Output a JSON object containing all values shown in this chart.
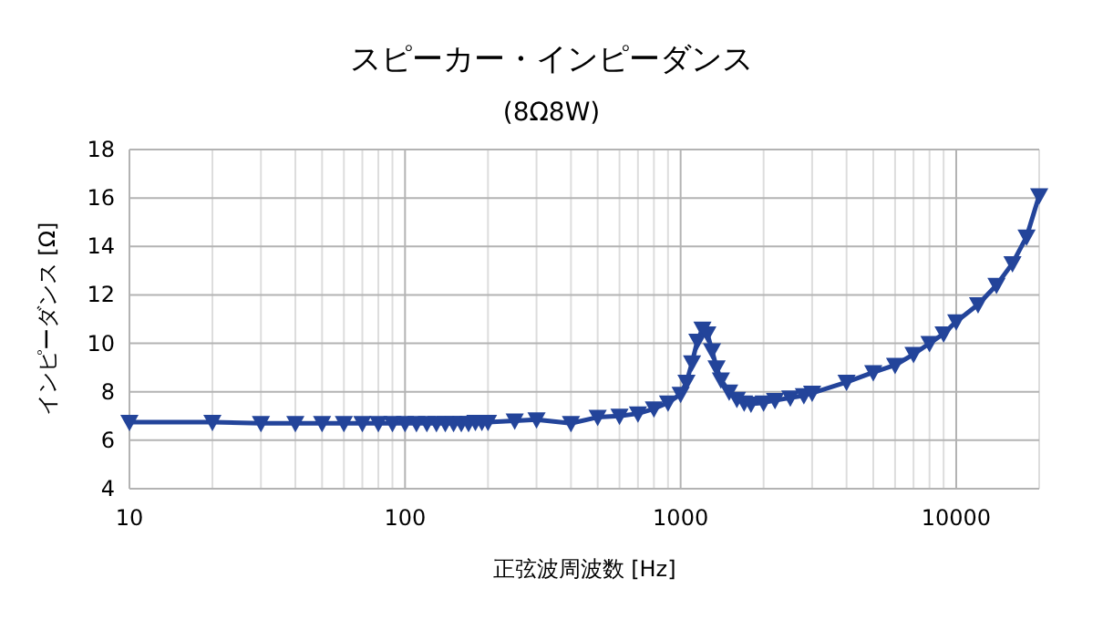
{
  "chart_data": {
    "type": "line",
    "title": "スピーカー・インピーダンス",
    "subtitle": "(8Ω8W)",
    "xlabel": "正弦波周波数 [Hz]",
    "ylabel": "インピーダンス [Ω]",
    "log": "x",
    "grid": true,
    "marker": "triangle",
    "line_style": "solid",
    "xlim": [
      10,
      20000
    ],
    "ylim": [
      4,
      18
    ],
    "xticks": [
      10,
      {
        "value": 20,
        "label": null
      },
      {
        "value": 30,
        "label": null
      },
      {
        "value": 40,
        "label": null
      },
      {
        "value": 50,
        "label": null
      },
      {
        "value": 60,
        "label": null
      },
      {
        "value": 70,
        "label": null
      },
      {
        "value": 80,
        "label": null
      },
      {
        "value": 90,
        "label": null
      },
      100,
      {
        "value": 200,
        "label": null
      },
      {
        "value": 300,
        "label": null
      },
      {
        "value": 400,
        "label": null
      },
      {
        "value": 500,
        "label": null
      },
      {
        "value": 600,
        "label": null
      },
      {
        "value": 700,
        "label": null
      },
      {
        "value": 800,
        "label": null
      },
      {
        "value": 900,
        "label": null
      },
      1000,
      {
        "value": 2000,
        "label": null
      },
      {
        "value": 3000,
        "label": null
      },
      {
        "value": 4000,
        "label": null
      },
      {
        "value": 5000,
        "label": null
      },
      {
        "value": 6000,
        "label": null
      },
      {
        "value": 7000,
        "label": null
      },
      {
        "value": 8000,
        "label": null
      },
      {
        "value": 9000,
        "label": null
      },
      10000,
      {
        "value": 20000,
        "label": null
      }
    ],
    "yticks": [
      4,
      6,
      8,
      10,
      12,
      14,
      16,
      18
    ],
    "x": [
      10,
      20,
      30,
      40,
      50,
      60,
      70,
      80,
      90,
      100,
      110,
      120,
      130,
      140,
      150,
      160,
      170,
      180,
      190,
      200,
      250,
      300,
      400,
      500,
      600,
      700,
      800,
      900,
      1000,
      1050,
      1100,
      1150,
      1200,
      1250,
      1300,
      1350,
      1400,
      1500,
      1600,
      1700,
      1800,
      2000,
      2200,
      2500,
      2800,
      3000,
      4000,
      5000,
      6000,
      7000,
      8000,
      9000,
      10000,
      12000,
      14000,
      16000,
      18000,
      20000
    ],
    "series": [
      {
        "color": "#23449a",
        "values": [
          6.75,
          6.75,
          6.7,
          6.7,
          6.7,
          6.7,
          6.7,
          6.7,
          6.7,
          6.7,
          6.7,
          6.7,
          6.7,
          6.7,
          6.7,
          6.7,
          6.7,
          6.75,
          6.75,
          6.75,
          6.8,
          6.85,
          6.7,
          6.95,
          7.0,
          7.1,
          7.3,
          7.55,
          7.9,
          8.4,
          9.2,
          10.1,
          10.6,
          10.4,
          9.7,
          9.0,
          8.5,
          8.0,
          7.7,
          7.55,
          7.5,
          7.55,
          7.65,
          7.75,
          7.85,
          7.95,
          8.4,
          8.8,
          9.1,
          9.55,
          10.0,
          10.4,
          10.9,
          11.6,
          12.4,
          13.3,
          14.4,
          16.1
        ]
      }
    ]
  }
}
